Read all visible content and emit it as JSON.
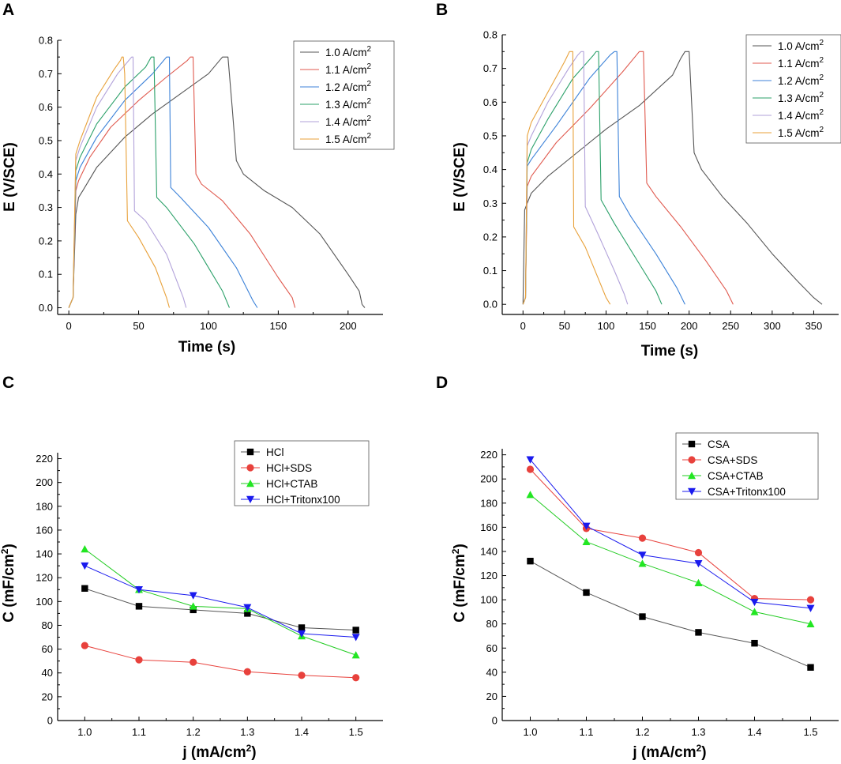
{
  "chart_data": [
    {
      "panel": "A",
      "type": "line",
      "xlabel": "Time (s)",
      "ylabel": "E (V/SCE)",
      "xlim": [
        -8,
        225
      ],
      "ylim": [
        -0.02,
        0.8
      ],
      "xticks": [
        0,
        50,
        100,
        150,
        200
      ],
      "yticks": [
        0.0,
        0.1,
        0.2,
        0.3,
        0.4,
        0.5,
        0.6,
        0.7,
        0.8
      ],
      "ytick_decimals": 1,
      "legend_position": "top-right",
      "series": [
        {
          "name": "1.0 A/cm",
          "superscript": "2",
          "color": "#555555",
          "points": [
            [
              0,
              0
            ],
            [
              3,
              0.03
            ],
            [
              5,
              0.28
            ],
            [
              7,
              0.33
            ],
            [
              10,
              0.35
            ],
            [
              20,
              0.42
            ],
            [
              40,
              0.51
            ],
            [
              60,
              0.58
            ],
            [
              80,
              0.64
            ],
            [
              100,
              0.7
            ],
            [
              110,
              0.75
            ],
            [
              114,
              0.75
            ],
            [
              117,
              0.6
            ],
            [
              120,
              0.44
            ],
            [
              125,
              0.4
            ],
            [
              140,
              0.35
            ],
            [
              160,
              0.3
            ],
            [
              180,
              0.22
            ],
            [
              200,
              0.1
            ],
            [
              208,
              0.05
            ],
            [
              210,
              0.01
            ],
            [
              212,
              0.0
            ]
          ]
        },
        {
          "name": "1.1 A/cm",
          "superscript": "2",
          "color": "#e05a4f",
          "points": [
            [
              0,
              0
            ],
            [
              3,
              0.03
            ],
            [
              5,
              0.35
            ],
            [
              7,
              0.38
            ],
            [
              15,
              0.45
            ],
            [
              30,
              0.54
            ],
            [
              50,
              0.62
            ],
            [
              70,
              0.69
            ],
            [
              85,
              0.74
            ],
            [
              87,
              0.75
            ],
            [
              89,
              0.75
            ],
            [
              91,
              0.4
            ],
            [
              95,
              0.37
            ],
            [
              110,
              0.32
            ],
            [
              130,
              0.22
            ],
            [
              150,
              0.09
            ],
            [
              160,
              0.03
            ],
            [
              162,
              0.0
            ]
          ]
        },
        {
          "name": "1.2 A/cm",
          "superscript": "2",
          "color": "#3c82d8",
          "points": [
            [
              0,
              0
            ],
            [
              3,
              0.03
            ],
            [
              5,
              0.38
            ],
            [
              8,
              0.42
            ],
            [
              20,
              0.51
            ],
            [
              40,
              0.62
            ],
            [
              60,
              0.7
            ],
            [
              68,
              0.74
            ],
            [
              70,
              0.75
            ],
            [
              72,
              0.75
            ],
            [
              73,
              0.36
            ],
            [
              80,
              0.33
            ],
            [
              100,
              0.24
            ],
            [
              120,
              0.12
            ],
            [
              132,
              0.02
            ],
            [
              135,
              0.0
            ]
          ]
        },
        {
          "name": "1.3 A/cm",
          "superscript": "2",
          "color": "#2ba069",
          "points": [
            [
              0,
              0
            ],
            [
              3,
              0.03
            ],
            [
              5,
              0.41
            ],
            [
              8,
              0.45
            ],
            [
              20,
              0.55
            ],
            [
              40,
              0.66
            ],
            [
              55,
              0.72
            ],
            [
              59,
              0.75
            ],
            [
              61,
              0.75
            ],
            [
              63,
              0.33
            ],
            [
              70,
              0.3
            ],
            [
              90,
              0.19
            ],
            [
              110,
              0.05
            ],
            [
              115,
              0.0
            ]
          ]
        },
        {
          "name": "1.4 A/cm",
          "superscript": "2",
          "color": "#b2a2da",
          "points": [
            [
              0,
              0
            ],
            [
              3,
              0.03
            ],
            [
              5,
              0.44
            ],
            [
              8,
              0.48
            ],
            [
              20,
              0.6
            ],
            [
              35,
              0.7
            ],
            [
              43,
              0.74
            ],
            [
              45,
              0.75
            ],
            [
              46,
              0.75
            ],
            [
              47,
              0.29
            ],
            [
              55,
              0.26
            ],
            [
              70,
              0.16
            ],
            [
              82,
              0.03
            ],
            [
              84,
              0.0
            ]
          ]
        },
        {
          "name": "1.5 A/cm",
          "superscript": "2",
          "color": "#e8a13a",
          "points": [
            [
              0,
              0
            ],
            [
              3,
              0.03
            ],
            [
              5,
              0.46
            ],
            [
              8,
              0.5
            ],
            [
              20,
              0.63
            ],
            [
              32,
              0.71
            ],
            [
              37,
              0.74
            ],
            [
              38,
              0.75
            ],
            [
              39,
              0.75
            ],
            [
              40,
              0.7
            ],
            [
              42,
              0.26
            ],
            [
              50,
              0.21
            ],
            [
              62,
              0.12
            ],
            [
              70,
              0.03
            ],
            [
              72,
              0.0
            ]
          ]
        }
      ]
    },
    {
      "panel": "B",
      "type": "line",
      "xlabel": "Time (s)",
      "ylabel": "E (V/SCE)",
      "xlim": [
        -25,
        380
      ],
      "ylim": [
        -0.03,
        0.8
      ],
      "xticks": [
        0,
        50,
        100,
        150,
        200,
        250,
        300,
        350
      ],
      "yticks": [
        0.0,
        0.1,
        0.2,
        0.3,
        0.4,
        0.5,
        0.6,
        0.7,
        0.8
      ],
      "ytick_decimals": 1,
      "legend_position": "top-right",
      "series": [
        {
          "name": "1.0 A/cm",
          "superscript": "2",
          "color": "#555555",
          "points": [
            [
              0,
              0
            ],
            [
              2,
              0.28
            ],
            [
              5,
              0.3
            ],
            [
              10,
              0.33
            ],
            [
              30,
              0.38
            ],
            [
              60,
              0.44
            ],
            [
              100,
              0.52
            ],
            [
              140,
              0.59
            ],
            [
              180,
              0.68
            ],
            [
              190,
              0.73
            ],
            [
              195,
              0.75
            ],
            [
              200,
              0.75
            ],
            [
              203,
              0.6
            ],
            [
              206,
              0.45
            ],
            [
              215,
              0.4
            ],
            [
              240,
              0.32
            ],
            [
              270,
              0.24
            ],
            [
              300,
              0.15
            ],
            [
              330,
              0.07
            ],
            [
              350,
              0.02
            ],
            [
              360,
              0.0
            ]
          ]
        },
        {
          "name": "1.1 A/cm",
          "superscript": "2",
          "color": "#e05a4f",
          "points": [
            [
              0,
              0
            ],
            [
              3,
              0.02
            ],
            [
              5,
              0.35
            ],
            [
              10,
              0.38
            ],
            [
              40,
              0.48
            ],
            [
              80,
              0.58
            ],
            [
              120,
              0.69
            ],
            [
              140,
              0.75
            ],
            [
              145,
              0.75
            ],
            [
              149,
              0.36
            ],
            [
              160,
              0.32
            ],
            [
              190,
              0.23
            ],
            [
              220,
              0.13
            ],
            [
              245,
              0.04
            ],
            [
              253,
              0.0
            ]
          ]
        },
        {
          "name": "1.2 A/cm",
          "superscript": "2",
          "color": "#3c82d8",
          "points": [
            [
              0,
              0
            ],
            [
              3,
              0.02
            ],
            [
              5,
              0.41
            ],
            [
              10,
              0.43
            ],
            [
              40,
              0.53
            ],
            [
              80,
              0.67
            ],
            [
              105,
              0.74
            ],
            [
              110,
              0.75
            ],
            [
              113,
              0.75
            ],
            [
              116,
              0.32
            ],
            [
              130,
              0.26
            ],
            [
              160,
              0.15
            ],
            [
              185,
              0.05
            ],
            [
              195,
              0.0
            ]
          ]
        },
        {
          "name": "1.3 A/cm",
          "superscript": "2",
          "color": "#2ba069",
          "points": [
            [
              0,
              0
            ],
            [
              3,
              0.02
            ],
            [
              5,
              0.42
            ],
            [
              10,
              0.46
            ],
            [
              30,
              0.55
            ],
            [
              60,
              0.67
            ],
            [
              85,
              0.74
            ],
            [
              88,
              0.75
            ],
            [
              91,
              0.75
            ],
            [
              94,
              0.31
            ],
            [
              110,
              0.24
            ],
            [
              140,
              0.12
            ],
            [
              160,
              0.04
            ],
            [
              167,
              0.0
            ]
          ]
        },
        {
          "name": "1.4 A/cm",
          "superscript": "2",
          "color": "#b2a2da",
          "points": [
            [
              0,
              0
            ],
            [
              3,
              0.02
            ],
            [
              5,
              0.47
            ],
            [
              10,
              0.5
            ],
            [
              30,
              0.6
            ],
            [
              55,
              0.7
            ],
            [
              66,
              0.74
            ],
            [
              70,
              0.75
            ],
            [
              73,
              0.75
            ],
            [
              75,
              0.29
            ],
            [
              90,
              0.21
            ],
            [
              110,
              0.1
            ],
            [
              122,
              0.03
            ],
            [
              126,
              0.0
            ]
          ]
        },
        {
          "name": "1.5 A/cm",
          "superscript": "2",
          "color": "#e8a13a",
          "points": [
            [
              0,
              0
            ],
            [
              3,
              0.02
            ],
            [
              5,
              0.5
            ],
            [
              10,
              0.54
            ],
            [
              30,
              0.63
            ],
            [
              50,
              0.72
            ],
            [
              56,
              0.75
            ],
            [
              60,
              0.75
            ],
            [
              61,
              0.23
            ],
            [
              75,
              0.17
            ],
            [
              90,
              0.08
            ],
            [
              100,
              0.02
            ],
            [
              105,
              0.0
            ]
          ]
        }
      ]
    },
    {
      "panel": "C",
      "type": "line",
      "markers": true,
      "xlabel": "j (mA/cm",
      "xlabel_superscript": "2",
      "xlabel_suffix": ")",
      "ylabel": "C (mF/cm",
      "ylabel_superscript": "2",
      "ylabel_suffix": ")",
      "xlim": [
        0.95,
        1.55
      ],
      "ylim": [
        0,
        225
      ],
      "xticks": [
        1.0,
        1.1,
        1.2,
        1.3,
        1.4,
        1.5
      ],
      "xtick_decimals": 1,
      "yticks": [
        0,
        20,
        40,
        60,
        80,
        100,
        120,
        140,
        160,
        180,
        200,
        220
      ],
      "ytick_decimals": 0,
      "legend_position": "top-right",
      "x": [
        1.0,
        1.1,
        1.2,
        1.3,
        1.4,
        1.5
      ],
      "series": [
        {
          "name": "HCl",
          "color": "#000000",
          "line_color": "#555555",
          "marker": "square",
          "values": [
            111,
            96,
            93,
            90,
            78,
            76
          ]
        },
        {
          "name": "HCl+SDS",
          "color": "#e8413c",
          "line_color": "#e8413c",
          "marker": "circle",
          "values": [
            63,
            51,
            49,
            41,
            38,
            36
          ]
        },
        {
          "name": "HCl+CTAB",
          "color": "#22e622",
          "line_color": "#22cc22",
          "marker": "triangle-up",
          "values": [
            144,
            110,
            96,
            94,
            71,
            55
          ]
        },
        {
          "name": "HCl+Tritonx100",
          "color": "#1a1aee",
          "line_color": "#1a1aee",
          "marker": "triangle-down",
          "values": [
            130,
            110,
            105,
            95,
            73,
            70
          ]
        }
      ]
    },
    {
      "panel": "D",
      "type": "line",
      "markers": true,
      "xlabel": "j (mA/cm",
      "xlabel_superscript": "2",
      "xlabel_suffix": ")",
      "ylabel": "C (mF/cm",
      "ylabel_superscript": "2",
      "ylabel_suffix": ")",
      "xlim": [
        0.95,
        1.55
      ],
      "ylim": [
        0,
        225
      ],
      "xticks": [
        1.0,
        1.1,
        1.2,
        1.3,
        1.4,
        1.5
      ],
      "xtick_decimals": 1,
      "yticks": [
        0,
        20,
        40,
        60,
        80,
        100,
        120,
        140,
        160,
        180,
        200,
        220
      ],
      "ytick_decimals": 0,
      "legend_position": "top-right",
      "x": [
        1.0,
        1.1,
        1.2,
        1.3,
        1.4,
        1.5
      ],
      "series": [
        {
          "name": "CSA",
          "color": "#000000",
          "line_color": "#555555",
          "marker": "square",
          "values": [
            132,
            106,
            86,
            73,
            64,
            44
          ]
        },
        {
          "name": "CSA+SDS",
          "color": "#e8413c",
          "line_color": "#e8413c",
          "marker": "circle",
          "values": [
            208,
            159,
            151,
            139,
            101,
            100
          ]
        },
        {
          "name": "CSA+CTAB",
          "color": "#22e622",
          "line_color": "#22cc22",
          "marker": "triangle-up",
          "values": [
            187,
            148,
            130,
            114,
            90,
            80
          ]
        },
        {
          "name": "CSA+Tritonx100",
          "color": "#1a1aee",
          "line_color": "#1a1aee",
          "marker": "triangle-down",
          "values": [
            216,
            161,
            137,
            130,
            98,
            93
          ]
        }
      ]
    }
  ]
}
